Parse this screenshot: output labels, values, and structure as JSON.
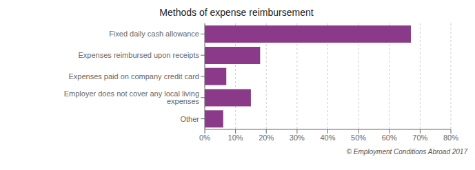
{
  "chart_data": {
    "type": "bar",
    "orientation": "horizontal",
    "title": "Methods of expense reimbursement",
    "categories": [
      "Other",
      "Employer does not cover any local living expenses",
      "Expenses paid on company credit card",
      "Expenses reimbursed upon receipts",
      "Fixed daily cash allowance"
    ],
    "values": [
      6,
      15,
      7,
      18,
      67
    ],
    "color": "#8B3A8A",
    "xlim": [
      0,
      80
    ],
    "xticks": [
      {
        "value": 0,
        "label": "0%"
      },
      {
        "value": 10,
        "label": "10%"
      },
      {
        "value": 20,
        "label": "20%"
      },
      {
        "value": 30,
        "label": "30%"
      },
      {
        "value": 40,
        "label": "40%"
      },
      {
        "value": 50,
        "label": "50%"
      },
      {
        "value": 60,
        "label": "60%"
      },
      {
        "value": 70,
        "label": "70%"
      },
      {
        "value": 80,
        "label": "80%"
      }
    ],
    "grid": true,
    "annotations": [
      "© Employment Conditions Abroad 2017"
    ]
  }
}
